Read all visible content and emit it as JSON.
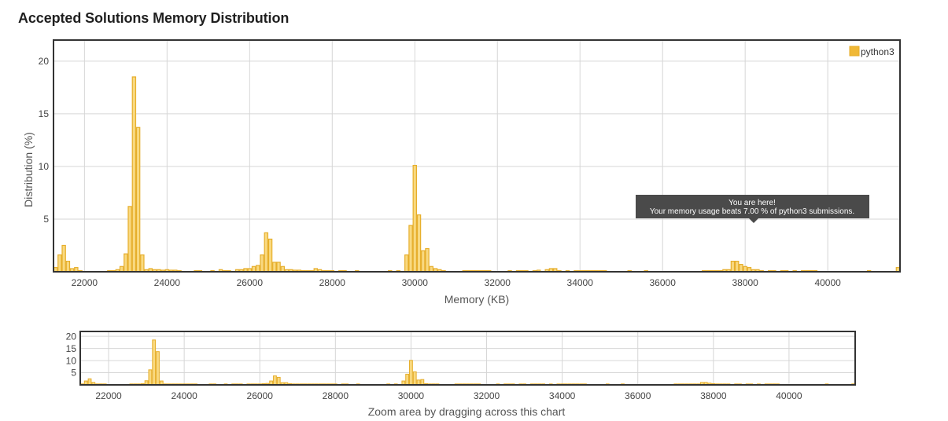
{
  "title": "Accepted Solutions Memory Distribution",
  "colors": {
    "bar_fill": "#f9d980",
    "bar_stroke": "#e6ae2b",
    "legend_fill": "#f0b836",
    "tooltip_bg": "#4a4a4a"
  },
  "legend": {
    "label": "python3",
    "placement": "top-right"
  },
  "tooltip": {
    "line1": "You are here!",
    "line2": "Your memory usage beats 7.00 % of python3 submissions.",
    "x": 38000
  },
  "navigator_caption": "Zoom area by dragging across this chart",
  "chart_data": {
    "type": "bar",
    "xlabel": "Memory (KB)",
    "ylabel": "Distribution (%)",
    "xlim": [
      21250,
      41750
    ],
    "ylim": [
      0,
      22
    ],
    "x_ticks": [
      22000,
      24000,
      26000,
      28000,
      30000,
      32000,
      34000,
      36000,
      38000,
      40000
    ],
    "y_ticks": [
      5,
      10,
      15,
      20
    ],
    "nav_y_ticks": [
      5,
      10,
      15,
      20
    ],
    "grid": true,
    "bin_width": 100,
    "series": [
      {
        "name": "python3",
        "points": [
          [
            21300,
            0.4
          ],
          [
            21400,
            1.6
          ],
          [
            21500,
            2.5
          ],
          [
            21600,
            1.0
          ],
          [
            21700,
            0.3
          ],
          [
            21800,
            0.4
          ],
          [
            21900,
            0.1
          ],
          [
            22600,
            0.1
          ],
          [
            22700,
            0.1
          ],
          [
            22800,
            0.2
          ],
          [
            22900,
            0.5
          ],
          [
            23000,
            1.7
          ],
          [
            23100,
            6.2
          ],
          [
            23200,
            18.5
          ],
          [
            23300,
            13.7
          ],
          [
            23400,
            1.6
          ],
          [
            23500,
            0.2
          ],
          [
            23600,
            0.3
          ],
          [
            23700,
            0.2
          ],
          [
            23800,
            0.2
          ],
          [
            23900,
            0.15
          ],
          [
            24000,
            0.2
          ],
          [
            24100,
            0.15
          ],
          [
            24200,
            0.15
          ],
          [
            24300,
            0.1
          ],
          [
            24700,
            0.1
          ],
          [
            24800,
            0.1
          ],
          [
            25100,
            0.1
          ],
          [
            25300,
            0.2
          ],
          [
            25400,
            0.1
          ],
          [
            25500,
            0.1
          ],
          [
            25700,
            0.2
          ],
          [
            25800,
            0.2
          ],
          [
            25900,
            0.3
          ],
          [
            26000,
            0.3
          ],
          [
            26100,
            0.5
          ],
          [
            26200,
            0.6
          ],
          [
            26300,
            1.6
          ],
          [
            26400,
            3.7
          ],
          [
            26500,
            3.1
          ],
          [
            26600,
            0.9
          ],
          [
            26700,
            0.9
          ],
          [
            26800,
            0.5
          ],
          [
            26900,
            0.2
          ],
          [
            27000,
            0.2
          ],
          [
            27100,
            0.15
          ],
          [
            27200,
            0.15
          ],
          [
            27300,
            0.1
          ],
          [
            27400,
            0.1
          ],
          [
            27500,
            0.1
          ],
          [
            27600,
            0.3
          ],
          [
            27700,
            0.2
          ],
          [
            27800,
            0.1
          ],
          [
            27900,
            0.1
          ],
          [
            28000,
            0.1
          ],
          [
            28200,
            0.1
          ],
          [
            28300,
            0.1
          ],
          [
            28600,
            0.1
          ],
          [
            29400,
            0.1
          ],
          [
            29600,
            0.1
          ],
          [
            29800,
            1.6
          ],
          [
            29900,
            4.4
          ],
          [
            30000,
            10.1
          ],
          [
            30100,
            5.4
          ],
          [
            30200,
            2.0
          ],
          [
            30300,
            2.2
          ],
          [
            30400,
            0.5
          ],
          [
            30500,
            0.3
          ],
          [
            30600,
            0.2
          ],
          [
            30700,
            0.1
          ],
          [
            31200,
            0.1
          ],
          [
            31300,
            0.1
          ],
          [
            31400,
            0.1
          ],
          [
            31500,
            0.1
          ],
          [
            31600,
            0.1
          ],
          [
            31700,
            0.1
          ],
          [
            31800,
            0.1
          ],
          [
            32300,
            0.1
          ],
          [
            32500,
            0.1
          ],
          [
            32600,
            0.1
          ],
          [
            32700,
            0.1
          ],
          [
            32900,
            0.1
          ],
          [
            33000,
            0.15
          ],
          [
            33200,
            0.2
          ],
          [
            33300,
            0.3
          ],
          [
            33400,
            0.3
          ],
          [
            33500,
            0.1
          ],
          [
            33700,
            0.1
          ],
          [
            33900,
            0.1
          ],
          [
            34000,
            0.1
          ],
          [
            34100,
            0.1
          ],
          [
            34200,
            0.1
          ],
          [
            34300,
            0.1
          ],
          [
            34400,
            0.1
          ],
          [
            34500,
            0.1
          ],
          [
            34600,
            0.1
          ],
          [
            35200,
            0.1
          ],
          [
            35600,
            0.1
          ],
          [
            37000,
            0.1
          ],
          [
            37100,
            0.1
          ],
          [
            37200,
            0.1
          ],
          [
            37300,
            0.1
          ],
          [
            37400,
            0.1
          ],
          [
            37500,
            0.2
          ],
          [
            37600,
            0.2
          ],
          [
            37700,
            1.0
          ],
          [
            37800,
            1.0
          ],
          [
            37900,
            0.7
          ],
          [
            38000,
            0.5
          ],
          [
            38100,
            0.4
          ],
          [
            38200,
            0.2
          ],
          [
            38300,
            0.2
          ],
          [
            38400,
            0.1
          ],
          [
            38600,
            0.1
          ],
          [
            38700,
            0.1
          ],
          [
            38900,
            0.1
          ],
          [
            39000,
            0.1
          ],
          [
            39200,
            0.1
          ],
          [
            39400,
            0.1
          ],
          [
            39500,
            0.1
          ],
          [
            39600,
            0.1
          ],
          [
            39700,
            0.1
          ],
          [
            41000,
            0.1
          ],
          [
            41700,
            0.4
          ]
        ]
      }
    ]
  }
}
